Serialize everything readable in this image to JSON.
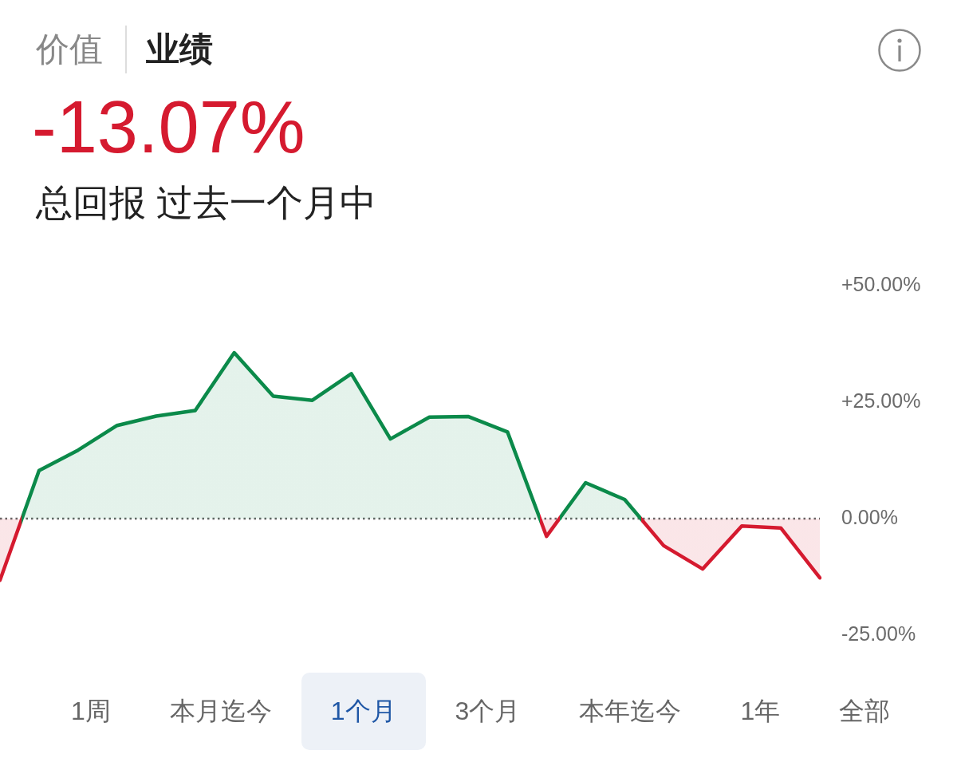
{
  "chart_data": {
    "type": "area",
    "title": "-13.07%",
    "subtitle": "总回报 过去一个月中",
    "annotations": [
      "价值",
      "业绩",
      "1周",
      "本月迄今",
      "1个月",
      "3个月",
      "本年迄今",
      "1年",
      "全部"
    ],
    "categories": [
      null,
      null,
      null,
      null,
      null,
      null,
      null,
      null,
      null,
      null,
      null,
      null,
      null,
      null,
      null,
      null,
      null,
      null,
      null,
      null,
      null,
      null
    ],
    "series": [
      {
        "values": [
          -13.2,
          10.3,
          14.7,
          20.0,
          22.0,
          23.2,
          35.6,
          26.3,
          25.4,
          31.1,
          17.1,
          21.8,
          21.9,
          18.6,
          -3.8,
          7.7,
          4.1,
          -5.8,
          -10.8,
          -1.6,
          -2.0,
          -12.7
        ],
        "colors": [
          "#d51a2f",
          "#0b8a4a",
          "#0b8a4a",
          "#0b8a4a",
          "#0b8a4a",
          "#0b8a4a",
          "#0b8a4a",
          "#0b8a4a",
          "#0b8a4a",
          "#0b8a4a",
          "#0b8a4a",
          "#0b8a4a",
          "#0b8a4a",
          "#0b8a4a",
          "#d51a2f",
          "#0b8a4a",
          "#0b8a4a",
          "#d51a2f",
          "#d51a2f",
          "#d51a2f",
          "#d51a2f",
          "#d51a2f"
        ]
      }
    ],
    "ylim": [
      -25,
      50
    ],
    "yticks": [
      {
        "value": -25,
        "label": "-25.00%"
      },
      {
        "value": 0,
        "label": "0.00%"
      },
      {
        "value": 25,
        "label": "+25.00%"
      },
      {
        "value": 50,
        "label": "+50.00%"
      }
    ],
    "tick_labels": "y",
    "ref_lines": [
      {
        "axis": "y",
        "value": 0,
        "line_style": "dotted",
        "color": "#666666"
      }
    ]
  }
}
